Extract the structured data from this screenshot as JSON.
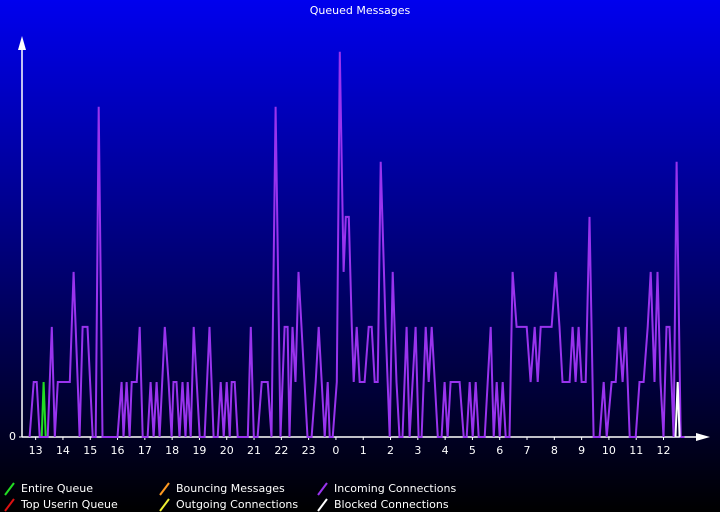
{
  "chart_data": {
    "type": "line",
    "title": "Queued Messages",
    "xlim": [
      -0.5,
      24.3
    ],
    "xticks": [
      {
        "value": 0,
        "label": "13"
      },
      {
        "value": 1,
        "label": "14"
      },
      {
        "value": 2,
        "label": "15"
      },
      {
        "value": 3,
        "label": "16"
      },
      {
        "value": 4,
        "label": "17"
      },
      {
        "value": 5,
        "label": "18"
      },
      {
        "value": 6,
        "label": "19"
      },
      {
        "value": 7,
        "label": "20"
      },
      {
        "value": 8,
        "label": "21"
      },
      {
        "value": 9,
        "label": "22"
      },
      {
        "value": 10,
        "label": "23"
      },
      {
        "value": 11,
        "label": "0"
      },
      {
        "value": 12,
        "label": "1"
      },
      {
        "value": 13,
        "label": "2"
      },
      {
        "value": 14,
        "label": "3"
      },
      {
        "value": 15,
        "label": "4"
      },
      {
        "value": 16,
        "label": "5"
      },
      {
        "value": 17,
        "label": "6"
      },
      {
        "value": 18,
        "label": "7"
      },
      {
        "value": 19,
        "label": "8"
      },
      {
        "value": 20,
        "label": "9"
      },
      {
        "value": 21,
        "label": "10"
      },
      {
        "value": 22,
        "label": "11"
      },
      {
        "value": 23,
        "label": "12"
      }
    ],
    "ylim": [
      0,
      7.25
    ],
    "yticks": [
      0
    ],
    "series": [
      {
        "name": "Entire Queue",
        "color": "#22dd22",
        "x": [
          0.22,
          0.29,
          0.37
        ],
        "values": [
          0,
          1,
          0
        ]
      },
      {
        "name": "Top Userin Queue",
        "color": "#dd1111",
        "x": [],
        "values": []
      },
      {
        "name": "Bouncing Messages",
        "color": "#ff9922",
        "x": [],
        "values": []
      },
      {
        "name": "Outgoing Connections",
        "color": "#eeee33",
        "x": [],
        "values": []
      },
      {
        "name": "Incoming Connections",
        "color": "#9933ee",
        "x": [
          -0.22,
          -0.07,
          0.04,
          0.15,
          0.44,
          0.59,
          0.7,
          0.81,
          1.25,
          1.39,
          1.54,
          1.61,
          1.72,
          1.9,
          2.09,
          2.2,
          2.31,
          2.45,
          2.78,
          3.0,
          3.15,
          3.22,
          3.33,
          3.44,
          3.52,
          3.7,
          3.81,
          3.92,
          4.1,
          4.21,
          4.32,
          4.43,
          4.54,
          4.73,
          4.87,
          4.98,
          5.05,
          5.16,
          5.27,
          5.38,
          5.49,
          5.57,
          5.68,
          5.79,
          5.9,
          6.01,
          6.19,
          6.37,
          6.52,
          6.67,
          6.78,
          6.89,
          7.0,
          7.11,
          7.18,
          7.29,
          7.4,
          7.77,
          7.88,
          7.99,
          8.13,
          8.28,
          8.5,
          8.64,
          8.79,
          8.97,
          9.12,
          9.23,
          9.3,
          9.41,
          9.52,
          9.63,
          9.74,
          9.85,
          9.96,
          10.11,
          10.26,
          10.37,
          10.48,
          10.59,
          10.7,
          10.77,
          10.88,
          11.03,
          11.14,
          11.28,
          11.36,
          11.47,
          11.58,
          11.65,
          11.76,
          11.87,
          12.05,
          12.2,
          12.31,
          12.42,
          12.53,
          12.64,
          12.82,
          12.97,
          13.08,
          13.22,
          13.33,
          13.44,
          13.59,
          13.7,
          13.81,
          13.92,
          14.03,
          14.14,
          14.29,
          14.4,
          14.51,
          14.62,
          14.73,
          14.87,
          14.98,
          15.09,
          15.2,
          15.53,
          15.68,
          15.79,
          15.9,
          16.01,
          16.12,
          16.23,
          16.45,
          16.56,
          16.67,
          16.78,
          16.89,
          17.0,
          17.11,
          17.22,
          17.36,
          17.47,
          17.62,
          17.99,
          18.13,
          18.28,
          18.39,
          18.5,
          18.9,
          19.05,
          19.19,
          19.3,
          19.56,
          19.67,
          19.78,
          19.89,
          20.0,
          20.15,
          20.29,
          20.44,
          20.66,
          20.81,
          20.92,
          21.1,
          21.25,
          21.36,
          21.5,
          21.61,
          21.76,
          21.98,
          22.12,
          22.27,
          22.42,
          22.53,
          22.67,
          22.78,
          22.89,
          23.0,
          23.11,
          23.22,
          23.37,
          23.48,
          23.63,
          23.77
        ],
        "values": [
          0,
          1,
          1,
          0,
          0,
          2,
          0,
          1,
          1,
          3,
          1,
          0,
          2,
          2,
          0,
          0,
          6,
          0,
          0,
          0,
          1,
          0,
          1,
          0,
          1,
          1,
          2,
          0,
          0,
          1,
          0,
          1,
          0,
          2,
          1,
          0,
          1,
          1,
          0,
          1,
          0,
          1,
          0,
          2,
          1,
          0,
          0,
          2,
          0,
          0,
          1,
          0,
          1,
          0,
          1,
          1,
          0,
          0,
          2,
          0,
          0,
          1,
          1,
          0,
          6,
          0,
          2,
          2,
          0,
          2,
          1,
          3,
          2,
          1,
          0,
          0,
          1,
          2,
          1,
          0,
          1,
          0,
          0,
          1,
          7,
          3,
          4,
          4,
          2,
          1,
          2,
          1,
          1,
          2,
          2,
          1,
          1,
          5,
          2,
          0,
          3,
          1,
          0,
          0,
          2,
          0,
          1,
          2,
          0,
          0,
          2,
          1,
          2,
          1,
          0,
          0,
          1,
          0,
          1,
          1,
          0,
          0,
          1,
          0,
          1,
          0,
          0,
          1,
          2,
          0,
          1,
          0,
          1,
          0,
          0,
          3,
          2,
          2,
          1,
          2,
          1,
          2,
          2,
          3,
          2,
          1,
          1,
          2,
          1,
          2,
          1,
          1,
          4,
          0,
          0,
          1,
          0,
          1,
          1,
          2,
          1,
          2,
          0,
          0,
          1,
          1,
          2,
          3,
          1,
          3,
          1,
          0,
          2,
          2,
          0,
          5,
          0,
          0
        ]
      },
      {
        "name": "Blocked Connections",
        "color": "#ffffff",
        "x": [
          23.44,
          23.52,
          23.59
        ],
        "values": [
          0,
          1,
          0
        ]
      }
    ]
  }
}
